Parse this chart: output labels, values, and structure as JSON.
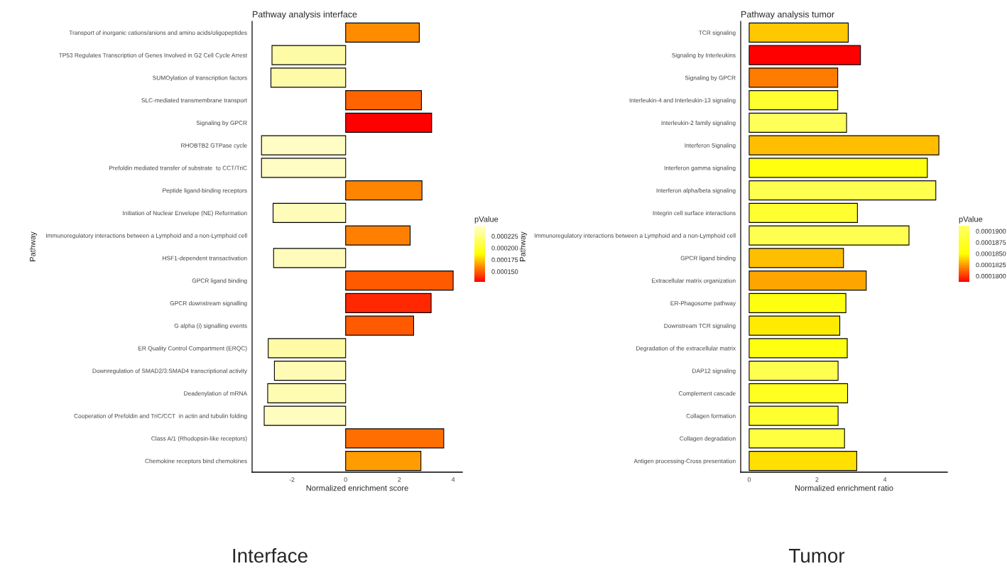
{
  "chart_data": [
    {
      "type": "bar",
      "orientation": "horizontal",
      "title": "Pathway analysis interface",
      "xlabel": "Normalized enrichment score",
      "ylabel": "Pathway",
      "clabel": "pValue",
      "categories": [
        "Transport of inorganic cations/anions and amino acids/oligopeptides",
        "TP53 Regulates Transcription of Genes Involved in G2 Cell Cycle Arrest",
        "SUMOylation of transcription factors",
        "SLC-mediated transmembrane transport",
        "Signaling by GPCR",
        "RHOBTB2 GTPase cycle",
        "Prefoldin mediated transfer of substrate  to CCT/TriC",
        "Peptide ligand-binding receptors",
        "Initiation of Nuclear Envelope (NE) Reformation",
        "Immunoregulatory interactions between a Lymphoid and a non-Lymphoid cell",
        "HSF1-dependent transactivation",
        "GPCR ligand binding",
        "GPCR downstream signalling",
        "G alpha (i) signalling events",
        "ER Quality Control Compartment (ERQC)",
        "Downregulation of SMAD2/3:SMAD4 transcriptional activity",
        "Deadenylation of mRNA",
        "Cooperation of Prefoldin and TriC/CCT  in actin and tubulin folding",
        "Class A/1 (Rhodopsin-like receptors)",
        "Chemokine receptors bind chemokines"
      ],
      "values": [
        2.74,
        -2.74,
        -2.78,
        2.82,
        3.2,
        -3.13,
        -3.13,
        2.84,
        -2.7,
        2.4,
        -2.68,
        4.0,
        3.18,
        2.53,
        -2.88,
        -2.65,
        -2.9,
        -3.03,
        3.65,
        2.8
      ],
      "colors": [
        "#ff8c00",
        "#fefba6",
        "#fefba8",
        "#ff6400",
        "#ff0000",
        "#fffcc4",
        "#fffcc4",
        "#ff8400",
        "#fffbb8",
        "#ff8000",
        "#fffbbb",
        "#ff5a00",
        "#ff2800",
        "#ff5a00",
        "#fefaa6",
        "#fffbb4",
        "#fefbb2",
        "#fffcc0",
        "#ff6e00",
        "#ff9c00"
      ],
      "xlim": [
        -3.48,
        4.34
      ],
      "xticks": [
        -2,
        0,
        2,
        4
      ],
      "clim": [
        0.000128,
        0.000247
      ],
      "cticks": [
        {
          "value": 0.00015,
          "label": "0.000150"
        },
        {
          "value": 0.000175,
          "label": "0.000175"
        },
        {
          "value": 0.0002,
          "label": "0.000200"
        },
        {
          "value": 0.000225,
          "label": "0.000225"
        }
      ],
      "annotations": [
        "Interface"
      ]
    },
    {
      "type": "bar",
      "orientation": "horizontal",
      "title": "Pathway analysis tumor",
      "xlabel": "Normalized enrichment ratio",
      "ylabel": "Pathway",
      "clabel": "pValue",
      "categories": [
        "TCR signaling",
        "Signaling by Interleukins",
        "Signaling by GPCR",
        "Interleukin-4 and Interleukin-13 signaling",
        "Interleukin-2 family signaling",
        "Interferon Signaling",
        "Interferon gamma signaling",
        "Interferon alpha/beta signaling",
        "Integrin cell surface interactions",
        "Immunoregulatory interactions between a Lymphoid and a non-Lymphoid cell",
        "GPCR ligand binding",
        "Extracellular matrix organization",
        "ER-Phagosome pathway",
        "Downstream TCR signaling",
        "Degradation of the extracellular matrix",
        "DAP12 signaling",
        "Complement cascade",
        "Collagen formation",
        "Collagen degradation",
        "Antigen processing-Cross presentation"
      ],
      "values": [
        2.92,
        3.28,
        2.61,
        2.61,
        2.87,
        5.59,
        5.25,
        5.5,
        3.19,
        4.71,
        2.78,
        3.45,
        2.85,
        2.67,
        2.89,
        2.62,
        2.9,
        2.62,
        2.81,
        3.17
      ],
      "colors": [
        "#ffc800",
        "#ff0000",
        "#ff7c00",
        "#ffff30",
        "#ffff5a",
        "#ffbf00",
        "#ffff10",
        "#ffff50",
        "#ffff30",
        "#ffff50",
        "#ffbf00",
        "#ffa500",
        "#ffff10",
        "#ffeb00",
        "#ffff10",
        "#ffff50",
        "#ffff20",
        "#ffff30",
        "#ffff40",
        "#ffe000"
      ],
      "xlim": [
        -0.25,
        5.84
      ],
      "xticks": [
        0,
        2,
        4
      ],
      "clim": [
        0.0001787,
        0.0001912
      ],
      "cticks": [
        {
          "value": 0.00018,
          "label": "0.0001800"
        },
        {
          "value": 0.0001825,
          "label": "0.0001825"
        },
        {
          "value": 0.000185,
          "label": "0.0001850"
        },
        {
          "value": 0.0001875,
          "label": "0.0001875"
        },
        {
          "value": 0.00019,
          "label": "0.0001900"
        }
      ],
      "annotations": [
        "Tumor"
      ]
    }
  ]
}
